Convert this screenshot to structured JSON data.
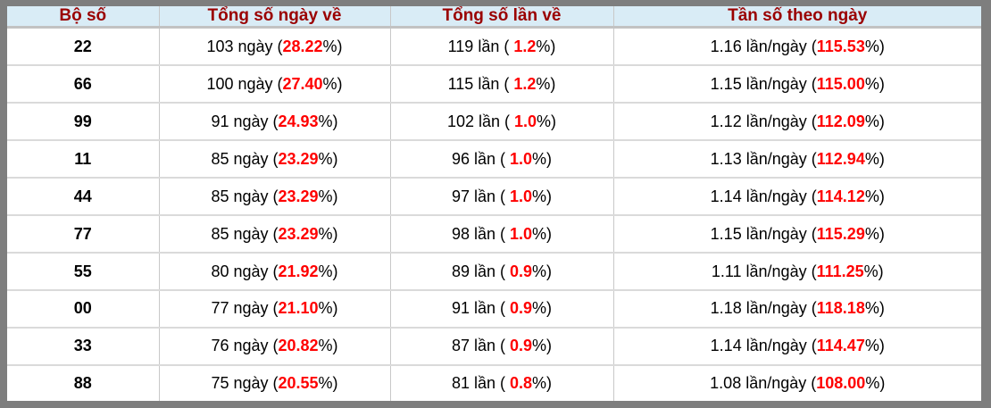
{
  "colors": {
    "frame": "#7e7e7e",
    "header_bg": "#d9ecf6",
    "header_text": "#9a0000",
    "header_border": "#c2c2c2",
    "row_divider": "#dadada",
    "col_divider": "#c8c8c8",
    "text": "#000000",
    "highlight": "#ff0000"
  },
  "table": {
    "headers": [
      "Bộ số",
      "Tổng số ngày về",
      "Tổng số lần về",
      "Tần số theo ngày"
    ],
    "rows": [
      {
        "pair": "22",
        "days_pre": "103 ngày (",
        "days_red": "28.22",
        "days_post": "%)",
        "times_pre": "119 lần ( ",
        "times_red": "1.2",
        "times_post": "%)",
        "freq_pre": "1.16 lần/ngày (",
        "freq_red": "115.53",
        "freq_post": "%)"
      },
      {
        "pair": "66",
        "days_pre": "100 ngày (",
        "days_red": "27.40",
        "days_post": "%)",
        "times_pre": "115 lần ( ",
        "times_red": "1.2",
        "times_post": "%)",
        "freq_pre": "1.15 lần/ngày (",
        "freq_red": "115.00",
        "freq_post": "%)"
      },
      {
        "pair": "99",
        "days_pre": "91 ngày (",
        "days_red": "24.93",
        "days_post": "%)",
        "times_pre": "102 lần ( ",
        "times_red": "1.0",
        "times_post": "%)",
        "freq_pre": "1.12 lần/ngày (",
        "freq_red": "112.09",
        "freq_post": "%)"
      },
      {
        "pair": "11",
        "days_pre": "85 ngày (",
        "days_red": "23.29",
        "days_post": "%)",
        "times_pre": "96 lần ( ",
        "times_red": "1.0",
        "times_post": "%)",
        "freq_pre": "1.13 lần/ngày (",
        "freq_red": "112.94",
        "freq_post": "%)"
      },
      {
        "pair": "44",
        "days_pre": "85 ngày (",
        "days_red": "23.29",
        "days_post": "%)",
        "times_pre": "97 lần ( ",
        "times_red": "1.0",
        "times_post": "%)",
        "freq_pre": "1.14 lần/ngày (",
        "freq_red": "114.12",
        "freq_post": "%)"
      },
      {
        "pair": "77",
        "days_pre": "85 ngày (",
        "days_red": "23.29",
        "days_post": "%)",
        "times_pre": "98 lần ( ",
        "times_red": "1.0",
        "times_post": "%)",
        "freq_pre": "1.15 lần/ngày (",
        "freq_red": "115.29",
        "freq_post": "%)"
      },
      {
        "pair": "55",
        "days_pre": "80 ngày (",
        "days_red": "21.92",
        "days_post": "%)",
        "times_pre": "89 lần ( ",
        "times_red": "0.9",
        "times_post": "%)",
        "freq_pre": "1.11 lần/ngày (",
        "freq_red": "111.25",
        "freq_post": "%)"
      },
      {
        "pair": "00",
        "days_pre": "77 ngày (",
        "days_red": "21.10",
        "days_post": "%)",
        "times_pre": "91 lần ( ",
        "times_red": "0.9",
        "times_post": "%)",
        "freq_pre": "1.18 lần/ngày (",
        "freq_red": "118.18",
        "freq_post": "%)"
      },
      {
        "pair": "33",
        "days_pre": "76 ngày (",
        "days_red": "20.82",
        "days_post": "%)",
        "times_pre": "87 lần ( ",
        "times_red": "0.9",
        "times_post": "%)",
        "freq_pre": "1.14 lần/ngày (",
        "freq_red": "114.47",
        "freq_post": "%)"
      },
      {
        "pair": "88",
        "days_pre": "75 ngày (",
        "days_red": "20.55",
        "days_post": "%)",
        "times_pre": "81 lần ( ",
        "times_red": "0.8",
        "times_post": "%)",
        "freq_pre": "1.08 lần/ngày (",
        "freq_post": "%)",
        "freq_red": "108.00"
      }
    ]
  }
}
